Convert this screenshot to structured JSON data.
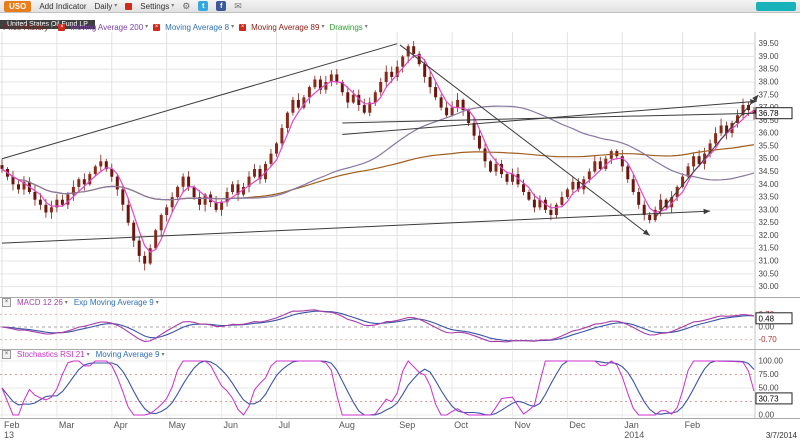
{
  "toolbar": {
    "symbol": "USO",
    "add_indicator": "Add Indicator",
    "timeframe": "Daily",
    "settings": "Settings"
  },
  "icons": {
    "caret": "▾",
    "close": "×",
    "gear": "⚙",
    "twitter": "t",
    "facebook": "f",
    "mail": "✉"
  },
  "symbol_strip": {
    "name": "United States Oil Fund LP"
  },
  "main_legend": {
    "items": [
      {
        "label": "Price History",
        "color": "#7b241c"
      },
      {
        "label": "Moving Average 200",
        "color": "#7a3fa8"
      },
      {
        "label": "Moving Average 8",
        "color": "#2e6fb8"
      },
      {
        "label": "Moving Average 89",
        "color": "#8b2016"
      },
      {
        "label": "Drawings",
        "color": "#2f9e2f"
      }
    ]
  },
  "chart_data": {
    "type": "candlestick+indicators",
    "symbol": "USO",
    "samples_per_point": 2,
    "price": {
      "closes": [
        34.6,
        34.3,
        34.0,
        33.8,
        34.1,
        33.7,
        33.4,
        33.2,
        32.9,
        33.1,
        33.4,
        33.2,
        33.6,
        33.9,
        34.2,
        34.0,
        34.4,
        34.7,
        34.9,
        34.6,
        34.3,
        33.8,
        33.2,
        32.5,
        31.8,
        31.2,
        30.9,
        31.5,
        32.2,
        32.8,
        33.1,
        33.5,
        33.9,
        34.3,
        33.9,
        33.5,
        33.2,
        33.6,
        33.3,
        33.0,
        33.3,
        33.7,
        34.0,
        33.6,
        33.9,
        34.3,
        34.6,
        34.2,
        34.8,
        35.2,
        35.6,
        36.2,
        36.8,
        37.3,
        37.0,
        37.4,
        37.8,
        38.1,
        37.7,
        38.0,
        38.3,
        38.0,
        37.6,
        37.2,
        37.5,
        37.1,
        36.8,
        37.2,
        37.6,
        38.0,
        38.4,
        38.2,
        38.6,
        39.0,
        39.4,
        39.1,
        38.7,
        38.2,
        37.8,
        37.4,
        37.0,
        36.7,
        37.0,
        37.3,
        36.9,
        36.4,
        35.9,
        35.4,
        34.9,
        34.5,
        34.8,
        34.4,
        34.1,
        34.4,
        34.0,
        33.7,
        33.4,
        33.1,
        33.4,
        33.0,
        32.8,
        33.2,
        33.5,
        33.8,
        34.1,
        33.8,
        34.2,
        34.5,
        34.9,
        34.6,
        35.0,
        35.3,
        35.1,
        34.7,
        34.2,
        33.7,
        33.2,
        32.8,
        32.6,
        33.0,
        33.4,
        33.1,
        33.5,
        33.9,
        34.3,
        34.7,
        35.1,
        34.8,
        35.2,
        35.6,
        36.0,
        36.3,
        36.0,
        36.4,
        36.7,
        37.1,
        36.9,
        36.78
      ],
      "last": "36.78",
      "ylim": [
        29.75,
        39.8
      ],
      "axis_ticks": [
        "39.50",
        "39.00",
        "38.50",
        "38.00",
        "37.50",
        "37.00",
        "36.50",
        "36.00",
        "35.50",
        "35.00",
        "34.50",
        "34.00",
        "33.50",
        "33.00",
        "32.50",
        "32.00",
        "31.50",
        "31.00",
        "30.50",
        "30.00"
      ],
      "candle_color": "#7c1f14"
    },
    "months": [
      {
        "label": "Feb",
        "t": 0,
        "sub": "13"
      },
      {
        "label": "Mar",
        "t": 10
      },
      {
        "label": "Apr",
        "t": 20
      },
      {
        "label": "May",
        "t": 30
      },
      {
        "label": "Jun",
        "t": 40
      },
      {
        "label": "Jul",
        "t": 50
      },
      {
        "label": "Aug",
        "t": 61
      },
      {
        "label": "Sep",
        "t": 72
      },
      {
        "label": "Oct",
        "t": 82
      },
      {
        "label": "Nov",
        "t": 93
      },
      {
        "label": "Dec",
        "t": 103
      },
      {
        "label": "Jan",
        "t": 113,
        "sub": "2014"
      },
      {
        "label": "Feb",
        "t": 124
      }
    ],
    "moving_averages": [
      {
        "period": 200,
        "color": "#a05f20"
      },
      {
        "period": 89,
        "color": "#8878a0"
      },
      {
        "period": 8,
        "color": "#e048c8"
      }
    ],
    "trendlines": [
      {
        "t1": 0,
        "p1": 35.0,
        "t2": 72,
        "p2": 39.5,
        "arrow": false
      },
      {
        "t1": 0,
        "p1": 31.7,
        "t2": 129,
        "p2": 32.95,
        "arrow": true
      },
      {
        "t1": 72.5,
        "p1": 39.45,
        "t2": 118,
        "p2": 32.0,
        "arrow": true
      },
      {
        "t1": 62,
        "p1": 36.4,
        "t2": 137.5,
        "p2": 36.78,
        "arrow": false
      },
      {
        "t1": 62,
        "p1": 35.95,
        "t2": 137.5,
        "p2": 37.25,
        "arrow": true
      },
      {
        "t1": 119,
        "p1": 32.7,
        "t2": 137.8,
        "p2": 37.5,
        "arrow": true
      }
    ],
    "macd": {
      "label": "MACD 12 26",
      "signal_label": "Exp Moving Average 9",
      "label_color": "#a23fae",
      "signal_color": "#2e6fb8",
      "fast": 12,
      "slow": 26,
      "signal": 9,
      "ticks": [
        "0.70",
        "0.00",
        "-0.70"
      ],
      "last": "0.48",
      "line_color": "#a93ca9",
      "signal_line_color": "#3b55a3"
    },
    "stoch": {
      "label": "Stochastics RSI 21",
      "ma_label": "Moving Average 9",
      "label_color": "#cc2fcc",
      "ma_color": "#2e6fb8",
      "rsi_period": 21,
      "ma_period": 9,
      "ticks": [
        "100.00",
        "75.00",
        "50.00",
        "25.00",
        "0.00"
      ],
      "dashed": [
        75,
        25
      ],
      "last": "30.73",
      "line_color": "#cc2fcc",
      "ma_line_color": "#3b55a3"
    },
    "date_label": "3/7/2014"
  }
}
